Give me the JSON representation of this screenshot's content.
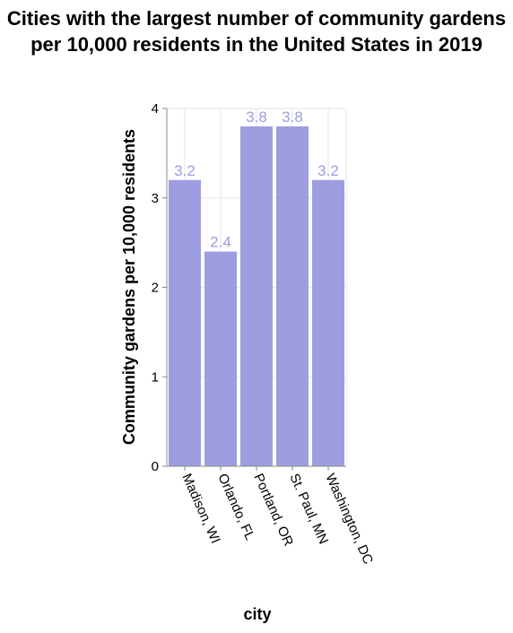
{
  "chart_data": {
    "type": "bar",
    "title": "Cities with the largest number of community gardens per 10,000 residents in the United States in 2019",
    "categories": [
      "Madison, WI",
      "Orlando, FL",
      "Portland, OR",
      "St. Paul, MN",
      "Washington, DC"
    ],
    "values": [
      3.2,
      2.4,
      3.8,
      3.8,
      3.2
    ],
    "data_labels": [
      "3.2",
      "2.4",
      "3.8",
      "3.8",
      "3.2"
    ],
    "xlabel": "city",
    "ylabel": "Community gardens per 10,000 residents",
    "ylim": [
      0,
      4
    ],
    "yticks": [
      "0",
      "1",
      "2",
      "3",
      "4"
    ],
    "grid": true,
    "colors": {
      "bar": "#9d9de0",
      "label": "#9d9de0",
      "grid": "#e6e6e6",
      "axis": "#888888"
    }
  }
}
